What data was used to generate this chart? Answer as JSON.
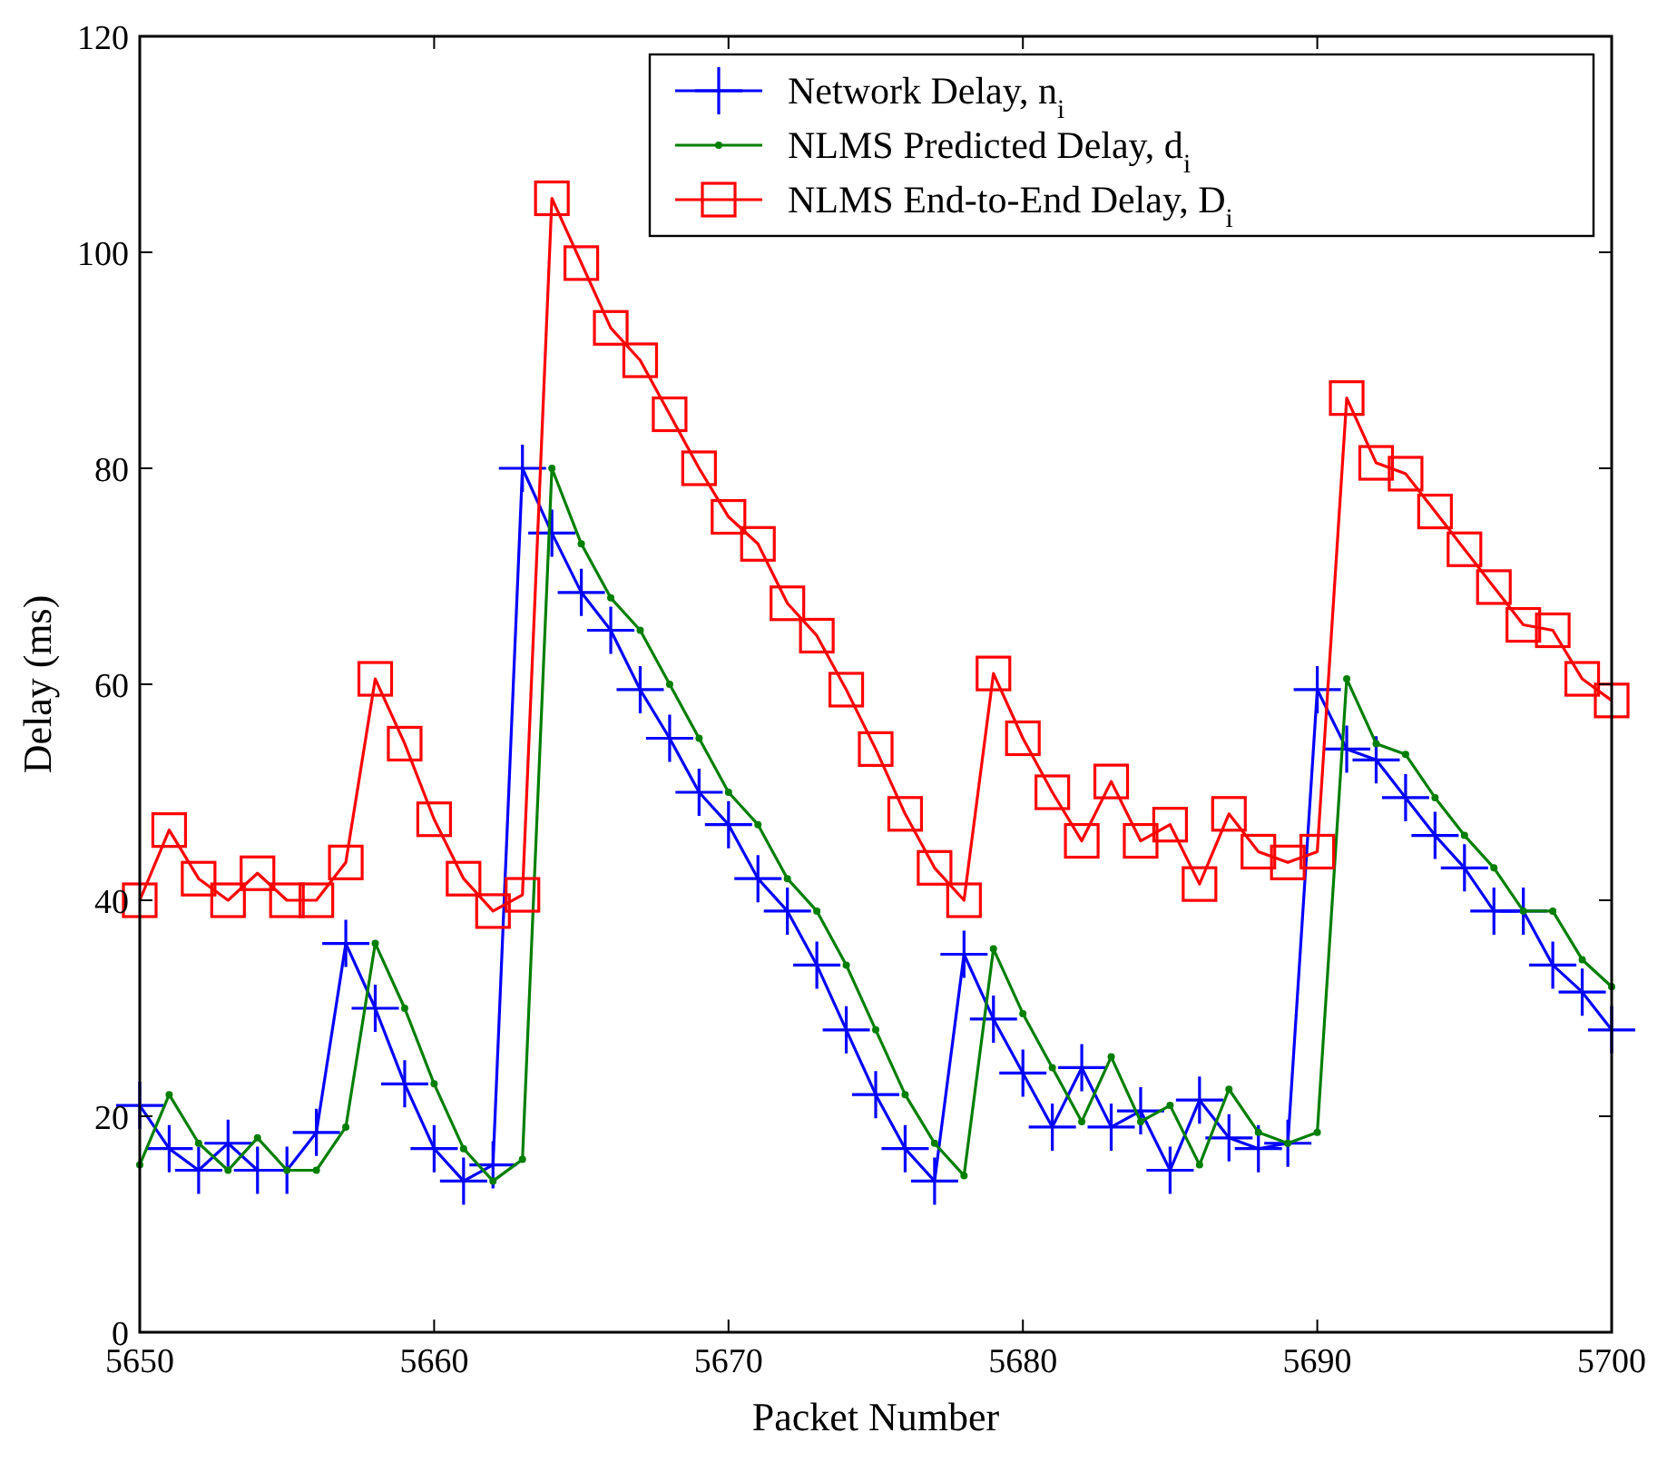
{
  "chart_data": {
    "type": "line",
    "xlabel": "Packet Number",
    "ylabel": "Delay (ms)",
    "x": [
      5650,
      5651,
      5652,
      5653,
      5654,
      5655,
      5656,
      5657,
      5658,
      5659,
      5660,
      5661,
      5662,
      5663,
      5664,
      5665,
      5666,
      5667,
      5668,
      5669,
      5670,
      5671,
      5672,
      5673,
      5674,
      5675,
      5676,
      5677,
      5678,
      5679,
      5680,
      5681,
      5682,
      5683,
      5684,
      5685,
      5686,
      5687,
      5688,
      5689,
      5690,
      5691,
      5692,
      5693,
      5694,
      5695,
      5696,
      5697,
      5698,
      5699,
      5700
    ],
    "series": [
      {
        "name": "Network Delay, n$_{i}$",
        "color": "#0000ff",
        "marker": "cross",
        "values": [
          21,
          17,
          15,
          17.5,
          15,
          15,
          18.5,
          36,
          30,
          23,
          17,
          14,
          15.5,
          80,
          74,
          68.5,
          65,
          59.5,
          55,
          50,
          47,
          42,
          39,
          34,
          28,
          22,
          17,
          14,
          35,
          29,
          24,
          19,
          24.5,
          19,
          20.5,
          15,
          21.5,
          18,
          17,
          17.5,
          59.5,
          54,
          53,
          49.5,
          46,
          43,
          39,
          39,
          34,
          31.5,
          28
        ]
      },
      {
        "name": "NLMS Predicted Delay, d$_{i}$",
        "color": "#007f00",
        "marker": "circle",
        "values": [
          15.5,
          22,
          17.5,
          15,
          18,
          15,
          15,
          19,
          36,
          30,
          23,
          17,
          14,
          16,
          80,
          73,
          68,
          65,
          60,
          55,
          50,
          47,
          42,
          39,
          34,
          28,
          22,
          17.5,
          14.5,
          35.5,
          29.5,
          24.5,
          19.5,
          25.5,
          19.5,
          21,
          15.5,
          22.5,
          18.5,
          17.5,
          18.5,
          60.5,
          54.5,
          53.5,
          49.5,
          46,
          43,
          39,
          39,
          34.5,
          32
        ]
      },
      {
        "name": "NLMS End-to-End Delay, D$_{i}$",
        "color": "#ff0000",
        "marker": "square",
        "values": [
          40,
          46.5,
          42,
          40,
          42.5,
          40,
          40,
          43.5,
          60.5,
          54.5,
          47.5,
          42,
          39,
          40.5,
          105,
          99,
          93,
          90,
          85,
          80,
          75.5,
          73,
          67.5,
          64.5,
          59.5,
          54,
          48,
          43,
          40,
          61,
          55,
          50,
          45.5,
          51,
          45.5,
          47,
          41.5,
          48,
          44.5,
          43.5,
          44.5,
          86.5,
          80.5,
          79.5,
          76,
          72.5,
          69,
          65.5,
          65,
          60.5,
          58.5
        ]
      }
    ],
    "xlim": [
      5650,
      5700
    ],
    "xticks": [
      5650,
      5660,
      5670,
      5680,
      5690,
      5700
    ],
    "ylim": [
      0,
      120
    ],
    "yticks": [
      0,
      20,
      40,
      60,
      80,
      100,
      120
    ],
    "grid": false,
    "legend": "top right",
    "line_style": "solid"
  }
}
